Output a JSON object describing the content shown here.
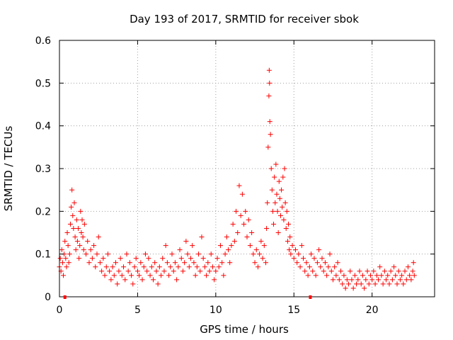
{
  "chart_data": {
    "type": "scatter",
    "title": "Day 193 of 2017, SRMTID for receiver sbok",
    "xlabel": "GPS time / hours",
    "ylabel": "SRMTID / TECUs",
    "xlim": [
      0,
      24
    ],
    "ylim": [
      0,
      0.6
    ],
    "xticks": [
      0,
      5,
      10,
      15,
      20
    ],
    "yticks": [
      0,
      0.1,
      0.2,
      0.3,
      0.4,
      0.5,
      0.6
    ],
    "xtick_labels": [
      "0",
      "5",
      "10",
      "15",
      "20"
    ],
    "ytick_labels": [
      "0",
      "0.1",
      "0.2",
      "0.3",
      "0.4",
      "0.5",
      "0.6"
    ],
    "grid": true,
    "marker": "plus",
    "series_color": "#ff0000",
    "marker_bars_x": [
      0.35,
      16.05
    ],
    "series": [
      {
        "name": "SRMTID",
        "points": [
          [
            0.0,
            0.07
          ],
          [
            0.05,
            0.09
          ],
          [
            0.1,
            0.06
          ],
          [
            0.15,
            0.11
          ],
          [
            0.2,
            0.08
          ],
          [
            0.25,
            0.05
          ],
          [
            0.3,
            0.1
          ],
          [
            0.35,
            0.13
          ],
          [
            0.4,
            0.09
          ],
          [
            0.45,
            0.07
          ],
          [
            0.5,
            0.15
          ],
          [
            0.55,
            0.12
          ],
          [
            0.6,
            0.08
          ],
          [
            0.65,
            0.1
          ],
          [
            0.7,
            0.17
          ],
          [
            0.75,
            0.21
          ],
          [
            0.8,
            0.25
          ],
          [
            0.85,
            0.19
          ],
          [
            0.9,
            0.16
          ],
          [
            0.95,
            0.22
          ],
          [
            1.0,
            0.14
          ],
          [
            1.05,
            0.11
          ],
          [
            1.1,
            0.18
          ],
          [
            1.15,
            0.13
          ],
          [
            1.2,
            0.16
          ],
          [
            1.25,
            0.09
          ],
          [
            1.3,
            0.12
          ],
          [
            1.35,
            0.2
          ],
          [
            1.4,
            0.15
          ],
          [
            1.45,
            0.18
          ],
          [
            1.5,
            0.14
          ],
          [
            1.55,
            0.11
          ],
          [
            1.6,
            0.17
          ],
          [
            1.7,
            0.1
          ],
          [
            1.8,
            0.13
          ],
          [
            1.9,
            0.08
          ],
          [
            2.0,
            0.11
          ],
          [
            2.1,
            0.09
          ],
          [
            2.2,
            0.12
          ],
          [
            2.3,
            0.07
          ],
          [
            2.4,
            0.1
          ],
          [
            2.5,
            0.14
          ],
          [
            2.6,
            0.08
          ],
          [
            2.7,
            0.06
          ],
          [
            2.8,
            0.09
          ],
          [
            2.9,
            0.05
          ],
          [
            3.0,
            0.07
          ],
          [
            3.1,
            0.1
          ],
          [
            3.2,
            0.06
          ],
          [
            3.3,
            0.04
          ],
          [
            3.4,
            0.07
          ],
          [
            3.5,
            0.05
          ],
          [
            3.6,
            0.08
          ],
          [
            3.7,
            0.03
          ],
          [
            3.8,
            0.06
          ],
          [
            3.9,
            0.09
          ],
          [
            4.0,
            0.05
          ],
          [
            4.1,
            0.07
          ],
          [
            4.2,
            0.04
          ],
          [
            4.3,
            0.1
          ],
          [
            4.4,
            0.06
          ],
          [
            4.5,
            0.08
          ],
          [
            4.6,
            0.05
          ],
          [
            4.7,
            0.03
          ],
          [
            4.8,
            0.07
          ],
          [
            4.9,
            0.09
          ],
          [
            5.0,
            0.06
          ],
          [
            5.1,
            0.05
          ],
          [
            5.2,
            0.08
          ],
          [
            5.3,
            0.04
          ],
          [
            5.4,
            0.07
          ],
          [
            5.5,
            0.1
          ],
          [
            5.6,
            0.06
          ],
          [
            5.7,
            0.09
          ],
          [
            5.8,
            0.05
          ],
          [
            5.9,
            0.07
          ],
          [
            6.0,
            0.04
          ],
          [
            6.1,
            0.08
          ],
          [
            6.2,
            0.06
          ],
          [
            6.3,
            0.03
          ],
          [
            6.4,
            0.07
          ],
          [
            6.5,
            0.05
          ],
          [
            6.6,
            0.09
          ],
          [
            6.7,
            0.06
          ],
          [
            6.8,
            0.12
          ],
          [
            6.9,
            0.08
          ],
          [
            7.0,
            0.05
          ],
          [
            7.1,
            0.07
          ],
          [
            7.2,
            0.1
          ],
          [
            7.3,
            0.06
          ],
          [
            7.4,
            0.08
          ],
          [
            7.5,
            0.04
          ],
          [
            7.6,
            0.07
          ],
          [
            7.7,
            0.11
          ],
          [
            7.8,
            0.09
          ],
          [
            7.9,
            0.06
          ],
          [
            8.0,
            0.08
          ],
          [
            8.1,
            0.13
          ],
          [
            8.2,
            0.1
          ],
          [
            8.3,
            0.07
          ],
          [
            8.4,
            0.09
          ],
          [
            8.5,
            0.12
          ],
          [
            8.6,
            0.08
          ],
          [
            8.7,
            0.05
          ],
          [
            8.8,
            0.07
          ],
          [
            8.9,
            0.1
          ],
          [
            9.0,
            0.06
          ],
          [
            9.1,
            0.14
          ],
          [
            9.2,
            0.09
          ],
          [
            9.3,
            0.07
          ],
          [
            9.4,
            0.05
          ],
          [
            9.5,
            0.08
          ],
          [
            9.6,
            0.06
          ],
          [
            9.7,
            0.1
          ],
          [
            9.8,
            0.07
          ],
          [
            9.9,
            0.04
          ],
          [
            10.0,
            0.06
          ],
          [
            10.1,
            0.09
          ],
          [
            10.2,
            0.07
          ],
          [
            10.3,
            0.12
          ],
          [
            10.4,
            0.08
          ],
          [
            10.5,
            0.05
          ],
          [
            10.6,
            0.1
          ],
          [
            10.7,
            0.14
          ],
          [
            10.8,
            0.11
          ],
          [
            10.9,
            0.08
          ],
          [
            11.0,
            0.12
          ],
          [
            11.1,
            0.17
          ],
          [
            11.2,
            0.13
          ],
          [
            11.3,
            0.2
          ],
          [
            11.4,
            0.15
          ],
          [
            11.5,
            0.26
          ],
          [
            11.6,
            0.19
          ],
          [
            11.7,
            0.24
          ],
          [
            11.8,
            0.17
          ],
          [
            11.9,
            0.2
          ],
          [
            12.0,
            0.14
          ],
          [
            12.1,
            0.18
          ],
          [
            12.2,
            0.12
          ],
          [
            12.3,
            0.15
          ],
          [
            12.4,
            0.1
          ],
          [
            12.5,
            0.08
          ],
          [
            12.6,
            0.11
          ],
          [
            12.7,
            0.07
          ],
          [
            12.8,
            0.1
          ],
          [
            12.9,
            0.13
          ],
          [
            13.0,
            0.09
          ],
          [
            13.1,
            0.12
          ],
          [
            13.2,
            0.08
          ],
          [
            13.25,
            0.16
          ],
          [
            13.3,
            0.22
          ],
          [
            13.35,
            0.35
          ],
          [
            13.4,
            0.47
          ],
          [
            13.42,
            0.53
          ],
          [
            13.44,
            0.5
          ],
          [
            13.46,
            0.41
          ],
          [
            13.5,
            0.38
          ],
          [
            13.55,
            0.3
          ],
          [
            13.6,
            0.25
          ],
          [
            13.65,
            0.2
          ],
          [
            13.7,
            0.17
          ],
          [
            13.75,
            0.28
          ],
          [
            13.8,
            0.22
          ],
          [
            13.85,
            0.31
          ],
          [
            13.9,
            0.24
          ],
          [
            13.95,
            0.2
          ],
          [
            14.0,
            0.15
          ],
          [
            14.05,
            0.27
          ],
          [
            14.1,
            0.23
          ],
          [
            14.15,
            0.19
          ],
          [
            14.2,
            0.25
          ],
          [
            14.25,
            0.21
          ],
          [
            14.3,
            0.28
          ],
          [
            14.35,
            0.18
          ],
          [
            14.4,
            0.3
          ],
          [
            14.45,
            0.22
          ],
          [
            14.5,
            0.16
          ],
          [
            14.55,
            0.2
          ],
          [
            14.6,
            0.13
          ],
          [
            14.65,
            0.17
          ],
          [
            14.7,
            0.11
          ],
          [
            14.75,
            0.14
          ],
          [
            14.8,
            0.1
          ],
          [
            14.9,
            0.12
          ],
          [
            15.0,
            0.09
          ],
          [
            15.1,
            0.11
          ],
          [
            15.2,
            0.08
          ],
          [
            15.3,
            0.1
          ],
          [
            15.4,
            0.07
          ],
          [
            15.5,
            0.12
          ],
          [
            15.6,
            0.09
          ],
          [
            15.7,
            0.06
          ],
          [
            15.8,
            0.08
          ],
          [
            15.9,
            0.05
          ],
          [
            16.0,
            0.07
          ],
          [
            16.1,
            0.1
          ],
          [
            16.2,
            0.06
          ],
          [
            16.3,
            0.09
          ],
          [
            16.4,
            0.05
          ],
          [
            16.5,
            0.08
          ],
          [
            16.6,
            0.11
          ],
          [
            16.7,
            0.07
          ],
          [
            16.8,
            0.09
          ],
          [
            16.9,
            0.06
          ],
          [
            17.0,
            0.08
          ],
          [
            17.1,
            0.05
          ],
          [
            17.2,
            0.07
          ],
          [
            17.3,
            0.1
          ],
          [
            17.4,
            0.06
          ],
          [
            17.5,
            0.04
          ],
          [
            17.6,
            0.07
          ],
          [
            17.7,
            0.05
          ],
          [
            17.8,
            0.08
          ],
          [
            17.9,
            0.04
          ],
          [
            18.0,
            0.06
          ],
          [
            18.1,
            0.03
          ],
          [
            18.2,
            0.05
          ],
          [
            18.3,
            0.02
          ],
          [
            18.4,
            0.04
          ],
          [
            18.5,
            0.03
          ],
          [
            18.6,
            0.06
          ],
          [
            18.7,
            0.04
          ],
          [
            18.8,
            0.02
          ],
          [
            18.9,
            0.05
          ],
          [
            19.0,
            0.03
          ],
          [
            19.1,
            0.04
          ],
          [
            19.2,
            0.06
          ],
          [
            19.3,
            0.03
          ],
          [
            19.4,
            0.05
          ],
          [
            19.5,
            0.02
          ],
          [
            19.6,
            0.04
          ],
          [
            19.7,
            0.06
          ],
          [
            19.8,
            0.03
          ],
          [
            19.9,
            0.05
          ],
          [
            20.0,
            0.04
          ],
          [
            20.1,
            0.06
          ],
          [
            20.2,
            0.03
          ],
          [
            20.3,
            0.05
          ],
          [
            20.4,
            0.04
          ],
          [
            20.5,
            0.07
          ],
          [
            20.6,
            0.05
          ],
          [
            20.7,
            0.03
          ],
          [
            20.8,
            0.06
          ],
          [
            20.9,
            0.04
          ],
          [
            21.0,
            0.05
          ],
          [
            21.1,
            0.03
          ],
          [
            21.2,
            0.06
          ],
          [
            21.3,
            0.04
          ],
          [
            21.4,
            0.07
          ],
          [
            21.5,
            0.05
          ],
          [
            21.6,
            0.03
          ],
          [
            21.7,
            0.06
          ],
          [
            21.8,
            0.04
          ],
          [
            21.9,
            0.05
          ],
          [
            22.0,
            0.03
          ],
          [
            22.1,
            0.06
          ],
          [
            22.2,
            0.04
          ],
          [
            22.3,
            0.07
          ],
          [
            22.4,
            0.05
          ],
          [
            22.5,
            0.04
          ],
          [
            22.6,
            0.06
          ],
          [
            22.65,
            0.08
          ],
          [
            22.7,
            0.05
          ]
        ]
      }
    ]
  }
}
